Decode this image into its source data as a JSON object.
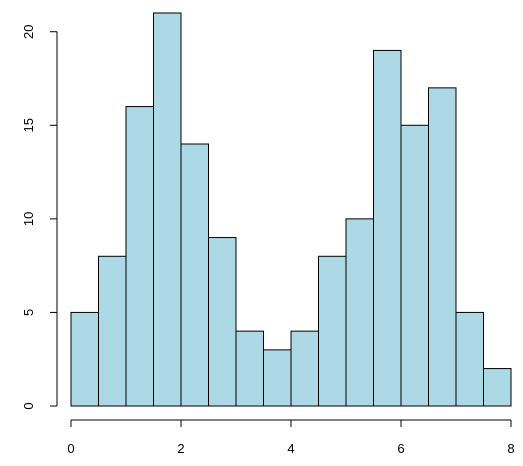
{
  "chart_data": {
    "type": "bar",
    "histogram": true,
    "bin_edges": [
      0,
      0.5,
      1,
      1.5,
      2,
      2.5,
      3,
      3.5,
      4,
      4.5,
      5,
      5.5,
      6,
      6.5,
      7,
      7.5,
      8
    ],
    "values": [
      5,
      8,
      16,
      21,
      14,
      9,
      4,
      3,
      4,
      8,
      10,
      19,
      15,
      17,
      5,
      2
    ],
    "title": "",
    "xlabel": "",
    "ylabel": "",
    "xlim": [
      0,
      8
    ],
    "ylim": [
      0,
      21
    ],
    "x_ticks": [
      0,
      2,
      4,
      6,
      8
    ],
    "x_tick_labels": [
      "0",
      "2",
      "4",
      "6",
      "8"
    ],
    "y_ticks": [
      0,
      5,
      10,
      15,
      20
    ],
    "y_tick_labels": [
      "0",
      "5",
      "10",
      "15",
      "20"
    ],
    "grid": false,
    "legend": "none",
    "bar_fill": "#add8e6",
    "bar_stroke": "#000000",
    "axis_color": "#000000"
  }
}
